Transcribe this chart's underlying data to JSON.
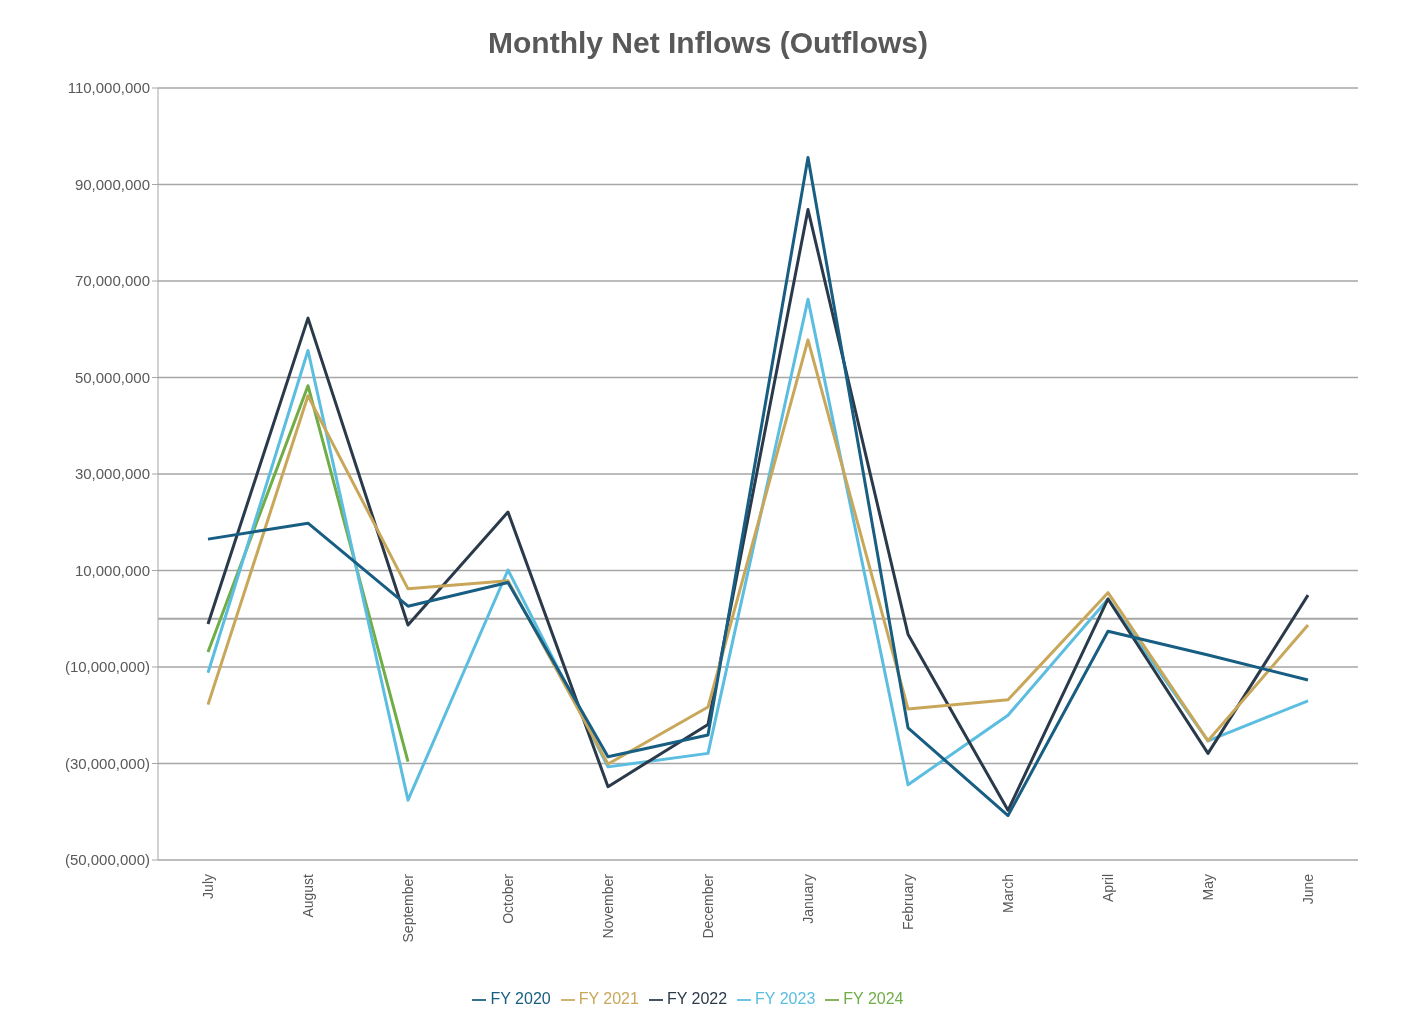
{
  "chart_data": {
    "type": "line",
    "title": "Monthly Net Inflows (Outflows)",
    "categories": [
      "July",
      "August",
      "September",
      "October",
      "November",
      "December",
      "January",
      "February",
      "March",
      "April",
      "May",
      "June"
    ],
    "series": [
      {
        "name": "FY 2024",
        "color": "#70ad47",
        "values": [
          -6900000,
          48300000,
          -29600000,
          null,
          null,
          null,
          null,
          null,
          null,
          null,
          null,
          null
        ]
      },
      {
        "name": "FY 2023",
        "color": "#5bbde0",
        "values": [
          -11200000,
          55600000,
          -37600000,
          10100000,
          -30700000,
          -27900000,
          66200000,
          -34400000,
          -20000000,
          4100000,
          -25300000,
          -17000000
        ]
      },
      {
        "name": "FY 2022",
        "color": "#2b3a4a",
        "values": [
          -1100000,
          62300000,
          -1300000,
          22100000,
          -34800000,
          -21900000,
          84800000,
          -3200000,
          -39700000,
          4100000,
          -27900000,
          4900000
        ]
      },
      {
        "name": "FY 2021",
        "color": "#c9a75a",
        "values": [
          -17800000,
          46200000,
          6200000,
          7900000,
          -30100000,
          -18300000,
          57800000,
          -18700000,
          -16800000,
          5400000,
          -25300000,
          -1300000
        ]
      },
      {
        "name": "FY 2020",
        "color": "#175e82",
        "values": [
          16500000,
          19800000,
          2600000,
          7500000,
          -28600000,
          -24100000,
          95600000,
          -22600000,
          -40800000,
          -2600000,
          -7500000,
          -12700000
        ]
      }
    ],
    "ylim": [
      -50000000,
      110000000
    ],
    "yticks": [
      {
        "value": -50000000,
        "label": "(50,000,000)"
      },
      {
        "value": -30000000,
        "label": "(30,000,000)"
      },
      {
        "value": -10000000,
        "label": "(10,000,000)"
      },
      {
        "value": 10000000,
        "label": "10,000,000"
      },
      {
        "value": 30000000,
        "label": "30,000,000"
      },
      {
        "value": 50000000,
        "label": "50,000,000"
      },
      {
        "value": 70000000,
        "label": "70,000,000"
      },
      {
        "value": 90000000,
        "label": "90,000,000"
      },
      {
        "value": 110000000,
        "label": "110,000,000"
      }
    ],
    "grid": "y",
    "legend": "bottom",
    "marker": "none",
    "line_style": "solid"
  }
}
